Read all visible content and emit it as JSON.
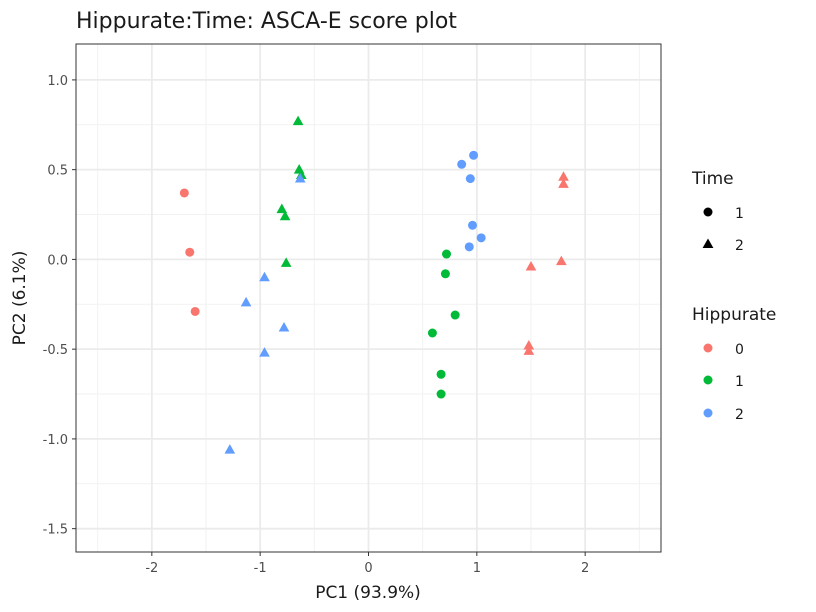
{
  "chart_data": {
    "type": "scatter",
    "title": "Hippurate:Time: ASCA-E score plot",
    "xlabel": "PC1 (93.9%)",
    "ylabel": "PC2 (6.1%)",
    "xlim": [
      -2.7,
      2.7
    ],
    "ylim": [
      -1.63,
      1.2
    ],
    "xticks": [
      -2,
      -1,
      0,
      1,
      2
    ],
    "xtick_labels": [
      "-2",
      "-1",
      "0",
      "1",
      "2"
    ],
    "yticks": [
      -1.5,
      -1.0,
      -0.5,
      0.0,
      0.5,
      1.0
    ],
    "ytick_labels": [
      "-1.5",
      "-1.0",
      "-0.5",
      "0.0",
      "0.5",
      "1.0"
    ],
    "grid": true,
    "legend_position": "right",
    "legends": [
      {
        "title": "Time",
        "entries": [
          {
            "label": "1",
            "shape": "circle"
          },
          {
            "label": "2",
            "shape": "triangle"
          }
        ]
      },
      {
        "title": "Hippurate",
        "entries": [
          {
            "label": "0",
            "color": "#F8766D"
          },
          {
            "label": "1",
            "color": "#00BA38"
          },
          {
            "label": "2",
            "color": "#619CFF"
          }
        ]
      }
    ],
    "colors": {
      "0": "#F8766D",
      "1": "#00BA38",
      "2": "#619CFF"
    },
    "points": [
      {
        "x": -1.7,
        "y": 0.37,
        "time": "1",
        "hippurate": "0"
      },
      {
        "x": -1.65,
        "y": 0.04,
        "time": "1",
        "hippurate": "0"
      },
      {
        "x": -1.6,
        "y": -0.29,
        "time": "1",
        "hippurate": "0"
      },
      {
        "x": 0.59,
        "y": -0.41,
        "time": "1",
        "hippurate": "1"
      },
      {
        "x": 0.67,
        "y": -0.64,
        "time": "1",
        "hippurate": "1"
      },
      {
        "x": 0.67,
        "y": -0.75,
        "time": "1",
        "hippurate": "1"
      },
      {
        "x": 0.71,
        "y": -0.08,
        "time": "1",
        "hippurate": "1"
      },
      {
        "x": 0.72,
        "y": 0.03,
        "time": "1",
        "hippurate": "1"
      },
      {
        "x": 0.8,
        "y": -0.31,
        "time": "1",
        "hippurate": "1"
      },
      {
        "x": 0.86,
        "y": 0.53,
        "time": "1",
        "hippurate": "2"
      },
      {
        "x": 0.93,
        "y": 0.07,
        "time": "1",
        "hippurate": "2"
      },
      {
        "x": 0.94,
        "y": 0.45,
        "time": "1",
        "hippurate": "2"
      },
      {
        "x": 0.96,
        "y": 0.19,
        "time": "1",
        "hippurate": "2"
      },
      {
        "x": 0.97,
        "y": 0.58,
        "time": "1",
        "hippurate": "2"
      },
      {
        "x": 1.04,
        "y": 0.12,
        "time": "1",
        "hippurate": "2"
      },
      {
        "x": 1.48,
        "y": -0.48,
        "time": "2",
        "hippurate": "0"
      },
      {
        "x": 1.48,
        "y": -0.51,
        "time": "2",
        "hippurate": "0"
      },
      {
        "x": 1.5,
        "y": -0.04,
        "time": "2",
        "hippurate": "0"
      },
      {
        "x": 1.78,
        "y": -0.01,
        "time": "2",
        "hippurate": "0"
      },
      {
        "x": 1.8,
        "y": 0.42,
        "time": "2",
        "hippurate": "0"
      },
      {
        "x": 1.8,
        "y": 0.46,
        "time": "2",
        "hippurate": "0"
      },
      {
        "x": -0.8,
        "y": 0.28,
        "time": "2",
        "hippurate": "1"
      },
      {
        "x": -0.77,
        "y": 0.24,
        "time": "2",
        "hippurate": "1"
      },
      {
        "x": -0.76,
        "y": -0.02,
        "time": "2",
        "hippurate": "1"
      },
      {
        "x": -0.65,
        "y": 0.77,
        "time": "2",
        "hippurate": "1"
      },
      {
        "x": -0.64,
        "y": 0.5,
        "time": "2",
        "hippurate": "1"
      },
      {
        "x": -0.62,
        "y": 0.47,
        "time": "2",
        "hippurate": "1"
      },
      {
        "x": -0.63,
        "y": 0.45,
        "time": "2",
        "hippurate": "2"
      },
      {
        "x": -0.96,
        "y": -0.1,
        "time": "2",
        "hippurate": "2"
      },
      {
        "x": -0.96,
        "y": -0.52,
        "time": "2",
        "hippurate": "2"
      },
      {
        "x": -0.78,
        "y": -0.38,
        "time": "2",
        "hippurate": "2"
      },
      {
        "x": -1.13,
        "y": -0.24,
        "time": "2",
        "hippurate": "2"
      },
      {
        "x": -1.28,
        "y": -1.06,
        "time": "2",
        "hippurate": "2"
      }
    ]
  }
}
